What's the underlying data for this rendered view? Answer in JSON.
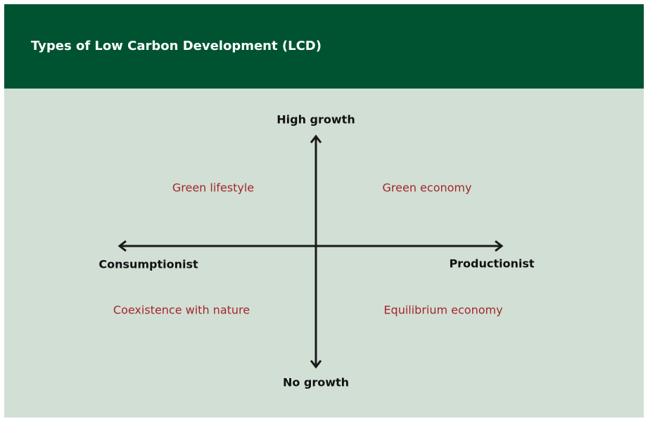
{
  "header": {
    "title": "Types of Low Carbon Development (LCD)"
  },
  "axes": {
    "top": "High growth",
    "bottom": "No growth",
    "left": "Consumptionist",
    "right": "Productionist"
  },
  "quadrants": {
    "top_left": "Green lifestyle",
    "top_right": "Green economy",
    "bottom_left": "Coexistence with nature",
    "bottom_right": "Equilibrium economy"
  }
}
